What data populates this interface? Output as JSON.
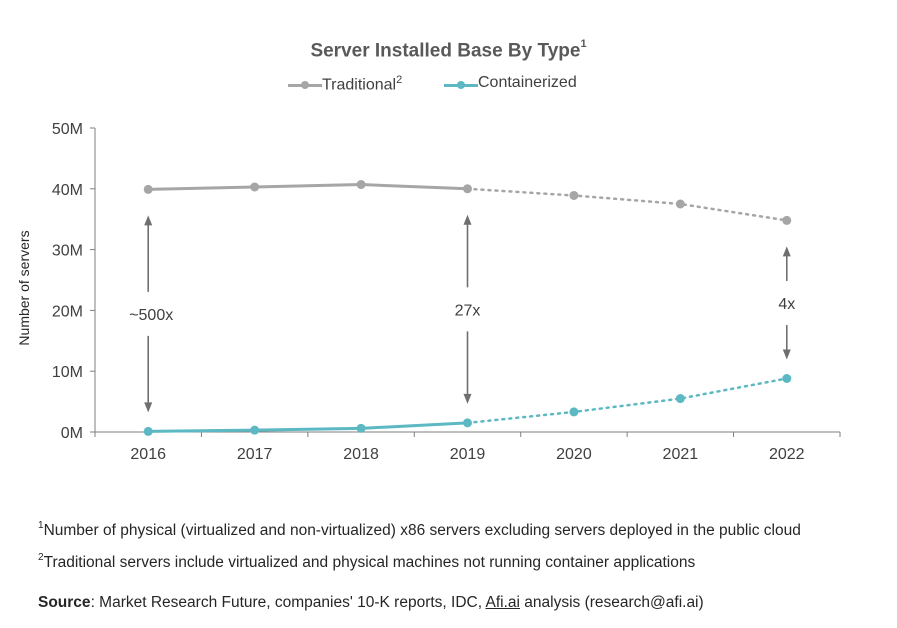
{
  "chart_data": {
    "type": "line",
    "title": "Server Installed Base By Type",
    "title_sup": "1",
    "ylabel": "Number of servers",
    "xlabel": "",
    "categories": [
      "2016",
      "2017",
      "2018",
      "2019",
      "2020",
      "2021",
      "2022"
    ],
    "ylim": [
      0,
      50
    ],
    "y_ticks": [
      "0M",
      "10M",
      "20M",
      "30M",
      "40M",
      "50M"
    ],
    "grid": false,
    "legend_position": "top-center",
    "series": [
      {
        "name": "Traditional",
        "name_sup": "2",
        "color": "#a6a6a6",
        "values": [
          39.9,
          40.3,
          40.7,
          40.0,
          38.9,
          37.5,
          34.8
        ],
        "solid_until_index": 3,
        "projected_from_index": 3
      },
      {
        "name": "Containerized",
        "name_sup": "",
        "color": "#5cb8c2",
        "values": [
          0.1,
          0.3,
          0.6,
          1.5,
          3.3,
          5.5,
          8.8
        ],
        "solid_until_index": 3,
        "projected_from_index": 3
      }
    ],
    "annotations": [
      {
        "text": "~500x",
        "category_index": 0
      },
      {
        "text": "27x",
        "category_index": 3
      },
      {
        "text": "4x",
        "category_index": 6
      }
    ]
  },
  "footnotes": [
    {
      "marker": "1",
      "text": "Number of physical (virtualized and non-virtualized) x86 servers excluding servers deployed in the public cloud"
    },
    {
      "marker": "2",
      "text": "Traditional servers include virtualized and physical machines not running container applications"
    }
  ],
  "source": {
    "label": "Source",
    "text_before": ": Market Research Future, companies' 10-K reports, IDC, ",
    "link": "Afi.ai",
    "text_after": " analysis (research@afi.ai)"
  }
}
